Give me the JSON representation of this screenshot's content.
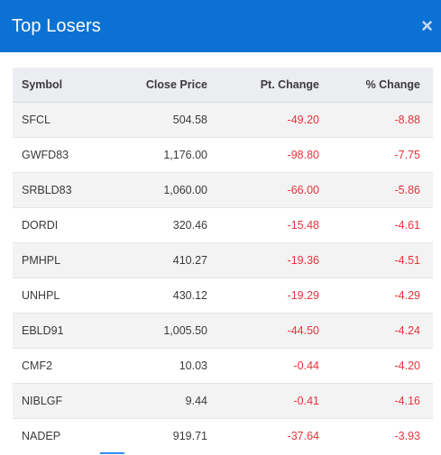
{
  "header": {
    "title": "Top Losers",
    "close_label": "×"
  },
  "table": {
    "columns": [
      "Symbol",
      "Close Price",
      "Pt. Change",
      "% Change"
    ],
    "rows": [
      {
        "symbol": "SFCL",
        "close": "504.58",
        "pt": "-49.20",
        "pct": "-8.88"
      },
      {
        "symbol": "GWFD83",
        "close": "1,176.00",
        "pt": "-98.80",
        "pct": "-7.75"
      },
      {
        "symbol": "SRBLD83",
        "close": "1,060.00",
        "pt": "-66.00",
        "pct": "-5.86"
      },
      {
        "symbol": "DORDI",
        "close": "320.46",
        "pt": "-15.48",
        "pct": "-4.61"
      },
      {
        "symbol": "PMHPL",
        "close": "410.27",
        "pt": "-19.36",
        "pct": "-4.51"
      },
      {
        "symbol": "UNHPL",
        "close": "430.12",
        "pt": "-19.29",
        "pct": "-4.29"
      },
      {
        "symbol": "EBLD91",
        "close": "1,005.50",
        "pt": "-44.50",
        "pct": "-4.24"
      },
      {
        "symbol": "CMF2",
        "close": "10.03",
        "pt": "-0.44",
        "pct": "-4.20"
      },
      {
        "symbol": "NIBLGF",
        "close": "9.44",
        "pt": "-0.41",
        "pct": "-4.16"
      },
      {
        "symbol": "NADEP",
        "close": "919.71",
        "pt": "-37.64",
        "pct": "-3.93"
      }
    ]
  },
  "colors": {
    "header_bg": "#0b72d4",
    "negative": "#e8323a",
    "row_alt": "#f3f3f4"
  }
}
